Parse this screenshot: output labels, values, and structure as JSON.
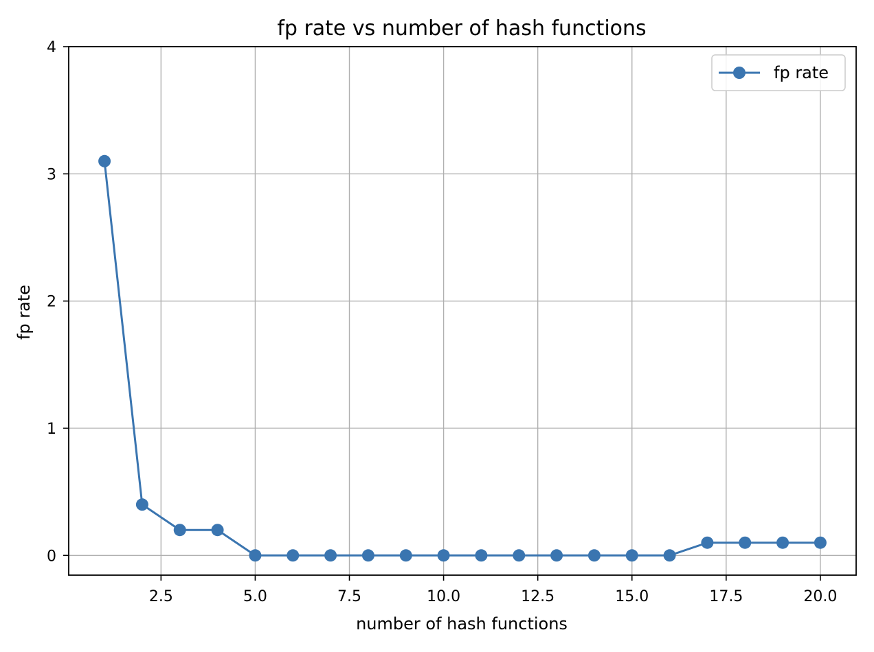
{
  "chart_data": {
    "type": "line",
    "title": "fp rate vs number of hash functions",
    "xlabel": "number of hash functions",
    "ylabel": "fp rate",
    "xlim": [
      0.05,
      20.95
    ],
    "ylim": [
      -0.155,
      4.0
    ],
    "xticks": [
      2.5,
      5.0,
      7.5,
      10.0,
      12.5,
      15.0,
      17.5,
      20.0
    ],
    "xtick_labels": [
      "2.5",
      "5.0",
      "7.5",
      "10.0",
      "12.5",
      "15.0",
      "17.5",
      "20.0"
    ],
    "yticks": [
      0,
      1,
      2,
      3,
      4
    ],
    "ytick_labels": [
      "0",
      "1",
      "2",
      "3",
      "4"
    ],
    "grid": true,
    "legend_position": "top-right",
    "series": [
      {
        "name": "fp rate",
        "color": "#3a75b0",
        "marker": "circle",
        "x": [
          1,
          2,
          3,
          4,
          5,
          6,
          7,
          8,
          9,
          10,
          11,
          12,
          13,
          14,
          15,
          16,
          17,
          18,
          19,
          20
        ],
        "y": [
          3.1,
          0.4,
          0.2,
          0.2,
          0.0,
          0.0,
          0.0,
          0.0,
          0.0,
          0.0,
          0.0,
          0.0,
          0.0,
          0.0,
          0.0,
          0.0,
          0.1,
          0.1,
          0.1,
          0.1
        ]
      }
    ]
  }
}
